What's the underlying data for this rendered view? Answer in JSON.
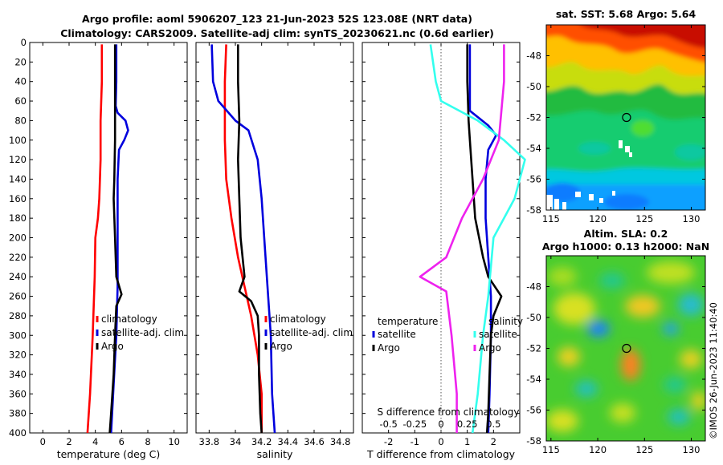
{
  "figure": {
    "title_line1": "Argo profile: aoml 5906207_123 21-Jun-2023 52S 123.08E (NRT data)",
    "title_line2": "Climatology: CARS2009. Satellite-adj clim: synTS_20230621.nc (0.6d earlier)",
    "credit": "©IMOS 26-Jun-2023 11:40:40"
  },
  "colors": {
    "climatology": "#ff0000",
    "satellite": "#0000dd",
    "argo": "#000000",
    "cyan": "#33ffee",
    "magenta": "#ee22ee",
    "zero_line": "#555555"
  },
  "chart_data": [
    {
      "type": "line",
      "title": "",
      "xlabel": "temperature (deg C)",
      "ylabel": "",
      "xlim": [
        -1,
        11
      ],
      "ylim": [
        400,
        0
      ],
      "xticks": [
        "0",
        "2",
        "4",
        "6",
        "8",
        "10"
      ],
      "yticks": [
        "0",
        "20",
        "40",
        "60",
        "80",
        "100",
        "120",
        "140",
        "160",
        "180",
        "200",
        "220",
        "240",
        "260",
        "280",
        "300",
        "320",
        "340",
        "360",
        "380",
        "400"
      ],
      "legend": [
        "climatology",
        "satellite-adj. clim",
        "Argo"
      ],
      "series": [
        {
          "name": "climatology",
          "color": "climatology",
          "points": [
            [
              4.5,
              2
            ],
            [
              4.5,
              40
            ],
            [
              4.4,
              80
            ],
            [
              4.4,
              120
            ],
            [
              4.3,
              160
            ],
            [
              4.2,
              180
            ],
            [
              4.0,
              200
            ],
            [
              3.95,
              240
            ],
            [
              3.8,
              300
            ],
            [
              3.6,
              360
            ],
            [
              3.4,
              400
            ]
          ]
        },
        {
          "name": "satellite-adj. clim",
          "color": "satellite",
          "points": [
            [
              5.6,
              2
            ],
            [
              5.6,
              40
            ],
            [
              5.55,
              65
            ],
            [
              5.7,
              72
            ],
            [
              6.3,
              80
            ],
            [
              6.5,
              90
            ],
            [
              6.2,
              100
            ],
            [
              5.8,
              110
            ],
            [
              5.7,
              140
            ],
            [
              5.7,
              250
            ],
            [
              5.6,
              300
            ],
            [
              5.4,
              350
            ],
            [
              5.2,
              400
            ]
          ]
        },
        {
          "name": "Argo",
          "color": "argo",
          "points": [
            [
              5.5,
              2
            ],
            [
              5.5,
              80
            ],
            [
              5.5,
              100
            ],
            [
              5.45,
              140
            ],
            [
              5.4,
              160
            ],
            [
              5.5,
              200
            ],
            [
              5.6,
              240
            ],
            [
              6.0,
              258
            ],
            [
              5.6,
              270
            ],
            [
              5.5,
              300
            ],
            [
              5.4,
              340
            ],
            [
              5.2,
              380
            ],
            [
              5.1,
              400
            ]
          ]
        }
      ]
    },
    {
      "type": "line",
      "title": "",
      "xlabel": "salinity",
      "ylabel": "",
      "xlim": [
        33.7,
        34.9
      ],
      "ylim": [
        400,
        0
      ],
      "xticks": [
        "33.8",
        "34",
        "34.2",
        "34.4",
        "34.6",
        "34.8"
      ],
      "yticks": [],
      "legend": [
        "climatology",
        "satellite-adj. clim",
        "Argo"
      ],
      "series": [
        {
          "name": "climatology",
          "color": "climatology",
          "points": [
            [
              33.93,
              2
            ],
            [
              33.92,
              40
            ],
            [
              33.92,
              100
            ],
            [
              33.93,
              140
            ],
            [
              33.97,
              180
            ],
            [
              34.02,
              220
            ],
            [
              34.07,
              250
            ],
            [
              34.12,
              280
            ],
            [
              34.17,
              320
            ],
            [
              34.2,
              360
            ],
            [
              34.2,
              400
            ]
          ]
        },
        {
          "name": "satellite-adj. clim",
          "color": "satellite",
          "points": [
            [
              33.82,
              2
            ],
            [
              33.83,
              40
            ],
            [
              33.87,
              60
            ],
            [
              34.0,
              80
            ],
            [
              34.1,
              90
            ],
            [
              34.17,
              120
            ],
            [
              34.2,
              160
            ],
            [
              34.22,
              200
            ],
            [
              34.25,
              260
            ],
            [
              34.27,
              300
            ],
            [
              34.28,
              360
            ],
            [
              34.3,
              400
            ]
          ]
        },
        {
          "name": "Argo",
          "color": "argo",
          "points": [
            [
              34.02,
              2
            ],
            [
              34.02,
              40
            ],
            [
              34.03,
              80
            ],
            [
              34.02,
              120
            ],
            [
              34.03,
              160
            ],
            [
              34.04,
              200
            ],
            [
              34.07,
              240
            ],
            [
              34.03,
              255
            ],
            [
              34.12,
              265
            ],
            [
              34.17,
              280
            ],
            [
              34.18,
              300
            ],
            [
              34.18,
              340
            ],
            [
              34.19,
              380
            ],
            [
              34.2,
              400
            ]
          ]
        }
      ]
    },
    {
      "type": "line",
      "title": "",
      "xlabel": "T difference from climatology",
      "ylabel": "",
      "xlim": [
        -3,
        3
      ],
      "ylim": [
        400,
        0
      ],
      "xticks": [
        "-2",
        "-1",
        "0",
        "1",
        "2"
      ],
      "secondary_xlabel": "S difference from climatology",
      "secondary_xticks": [
        "-0.5",
        "-0.25",
        "0",
        "0.25",
        "0.5"
      ],
      "yticks": [],
      "legend_left_title": "temperature",
      "legend_right_title": "salinity",
      "legend_left": [
        "satellite",
        "Argo"
      ],
      "legend_right": [
        "satellite",
        "Argo"
      ],
      "series": [
        {
          "name": "T satellite",
          "color": "satellite",
          "points": [
            [
              1.1,
              2
            ],
            [
              1.1,
              40
            ],
            [
              1.1,
              70
            ],
            [
              1.8,
              85
            ],
            [
              2.1,
              95
            ],
            [
              1.8,
              110
            ],
            [
              1.7,
              140
            ],
            [
              1.7,
              180
            ],
            [
              1.8,
              220
            ],
            [
              1.9,
              260
            ],
            [
              1.9,
              300
            ],
            [
              1.85,
              360
            ],
            [
              1.8,
              400
            ]
          ]
        },
        {
          "name": "T Argo",
          "color": "argo",
          "points": [
            [
              1.0,
              2
            ],
            [
              1.0,
              40
            ],
            [
              1.05,
              80
            ],
            [
              1.1,
              100
            ],
            [
              1.2,
              140
            ],
            [
              1.3,
              180
            ],
            [
              1.6,
              220
            ],
            [
              1.8,
              240
            ],
            [
              2.3,
              260
            ],
            [
              2.0,
              280
            ],
            [
              1.9,
              300
            ],
            [
              1.85,
              340
            ],
            [
              1.8,
              380
            ],
            [
              1.75,
              400
            ]
          ]
        },
        {
          "name": "S satellite",
          "color": "cyan",
          "points": [
            [
              -0.1,
              2
            ],
            [
              -0.05,
              40
            ],
            [
              0.0,
              60
            ],
            [
              0.35,
              80
            ],
            [
              0.6,
              100
            ],
            [
              0.8,
              120
            ],
            [
              0.7,
              160
            ],
            [
              0.5,
              200
            ],
            [
              0.45,
              260
            ],
            [
              0.4,
              300
            ],
            [
              0.35,
              360
            ],
            [
              0.3,
              400
            ]
          ]
        },
        {
          "name": "S Argo",
          "color": "magenta",
          "points": [
            [
              0.6,
              2
            ],
            [
              0.6,
              40
            ],
            [
              0.55,
              100
            ],
            [
              0.4,
              140
            ],
            [
              0.2,
              180
            ],
            [
              0.05,
              220
            ],
            [
              -0.2,
              240
            ],
            [
              0.05,
              255
            ],
            [
              0.1,
              300
            ],
            [
              0.15,
              360
            ],
            [
              0.15,
              400
            ]
          ]
        }
      ]
    },
    {
      "type": "heatmap",
      "title": "sat. SST: 5.68 Argo: 5.64",
      "xlim": [
        114.5,
        131.5
      ],
      "ylim": [
        -58,
        -46
      ],
      "xticks": [
        "115",
        "120",
        "125",
        "130"
      ],
      "yticks": [
        "-48",
        "-50",
        "-52",
        "-54",
        "-56",
        "-58"
      ],
      "marker": {
        "lon": 123.08,
        "lat": -52
      }
    },
    {
      "type": "heatmap",
      "title": "Altim. SLA: 0.2",
      "title_line2": "Argo h1000: 0.13 h2000: NaN",
      "xlim": [
        114.5,
        131.5
      ],
      "ylim": [
        -58,
        -46
      ],
      "xticks": [
        "115",
        "120",
        "125",
        "130"
      ],
      "yticks": [
        "-48",
        "-50",
        "-52",
        "-54",
        "-56",
        "-58"
      ],
      "marker": {
        "lon": 123.08,
        "lat": -52
      }
    }
  ]
}
